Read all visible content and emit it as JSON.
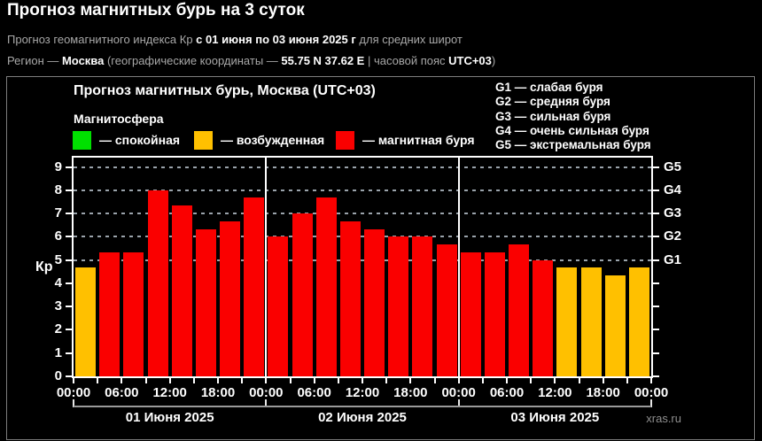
{
  "page": {
    "title": "Прогноз магнитных бурь на 3 суток",
    "subtitle": {
      "part1": "Прогноз геомагнитного индекса Кр ",
      "bold1": "с 01 июня по 03 июня 2025 г",
      "part2": " для средних широт"
    },
    "region_line": {
      "part1": "Регион — ",
      "bold1": "Москва",
      "part2": " (географические координаты — ",
      "bold2": "55.75 N 37.62 E",
      "part3": " | часовой пояс ",
      "bold3": "UTC+03",
      "part4": ")"
    },
    "watermark": "xras.ru"
  },
  "chart": {
    "title": "Прогноз магнитных бурь, Москва (UTC+03)",
    "magnetosphere_label": "Магнитосфера",
    "legend": [
      {
        "key": "quiet",
        "label": "— спокойная",
        "color": "#00e000"
      },
      {
        "key": "excited",
        "label": "— возбужденная",
        "color": "#ffc000"
      },
      {
        "key": "storm",
        "label": "— магнитная буря",
        "color": "#fa0000"
      }
    ],
    "g_legend": [
      "G1 — слабая буря",
      "G2 — средняя буря",
      "G3 — сильная буря",
      "G4 — очень сильная буря",
      "G5 — экстремальная буря"
    ],
    "y_axis_label": "Кр"
  },
  "chart_data": {
    "type": "bar",
    "title": "Прогноз магнитных бурь, Москва (UTC+03)",
    "ylabel": "Кр",
    "ylim": [
      0,
      9.4
    ],
    "y_ticks": [
      0,
      1,
      2,
      3,
      4,
      5,
      6,
      7,
      8,
      9
    ],
    "gridline_levels": [
      5,
      6,
      7,
      8,
      9
    ],
    "right_axis_labels": [
      {
        "kp": 5,
        "label": "G1"
      },
      {
        "kp": 6,
        "label": "G2"
      },
      {
        "kp": 7,
        "label": "G3"
      },
      {
        "kp": 8,
        "label": "G4"
      },
      {
        "kp": 9,
        "label": "G5"
      }
    ],
    "interval_hours": 3,
    "bars_per_day": 8,
    "x_time_labels": [
      "00:00",
      "06:00",
      "12:00",
      "18:00",
      "00:00",
      "06:00",
      "12:00",
      "18:00",
      "00:00",
      "06:00",
      "12:00",
      "18:00",
      "00:00"
    ],
    "day_labels": [
      "01 Июня 2025",
      "02 Июня 2025",
      "03 Июня 2025"
    ],
    "values": [
      4.67,
      5.33,
      5.33,
      8.0,
      7.33,
      6.33,
      6.67,
      7.67,
      6.0,
      7.0,
      7.67,
      6.67,
      6.33,
      6.0,
      6.0,
      5.67,
      5.33,
      5.33,
      5.67,
      5.0,
      4.67,
      4.67,
      4.33,
      4.67
    ],
    "storm_threshold": 5,
    "colors": {
      "quiet": "#00e000",
      "excited": "#ffc000",
      "storm": "#fa0000"
    }
  }
}
